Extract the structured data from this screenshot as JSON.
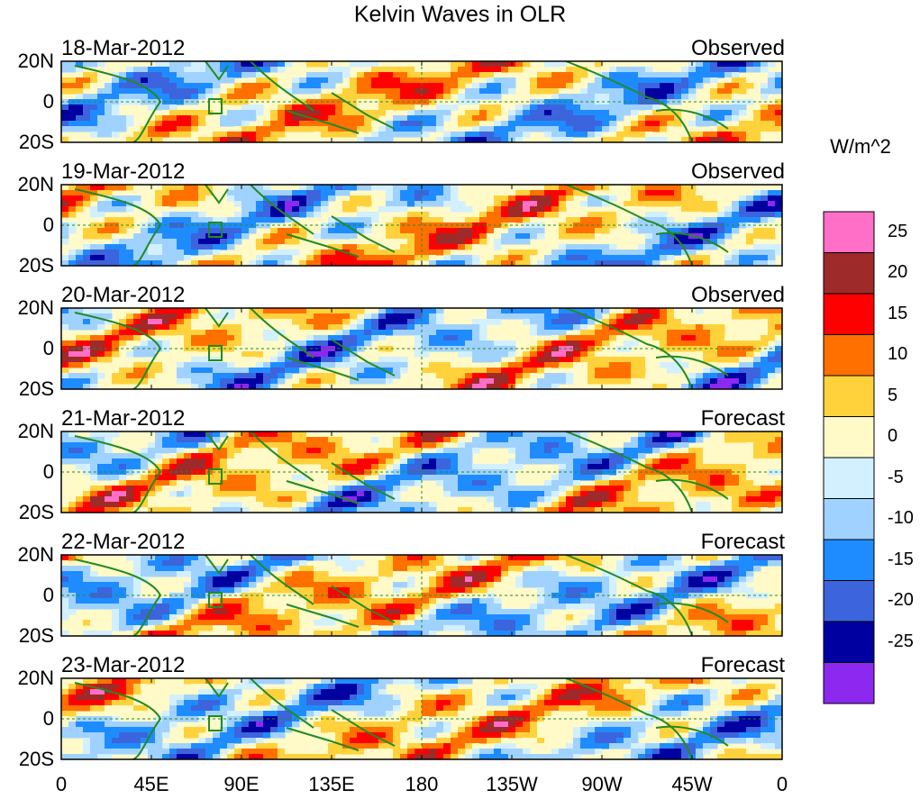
{
  "figure": {
    "title": "Kelvin Waves in OLR",
    "units": "W/m^2",
    "lat_labels": [
      "20N",
      "0",
      "20S"
    ],
    "lon_labels": [
      "0",
      "45E",
      "90E",
      "135E",
      "180",
      "135W",
      "90W",
      "45W",
      "0"
    ],
    "panels": [
      {
        "date": "18-Mar-2012",
        "status": "Observed"
      },
      {
        "date": "19-Mar-2012",
        "status": "Observed"
      },
      {
        "date": "20-Mar-2012",
        "status": "Observed"
      },
      {
        "date": "21-Mar-2012",
        "status": "Forecast"
      },
      {
        "date": "22-Mar-2012",
        "status": "Forecast"
      },
      {
        "date": "23-Mar-2012",
        "status": "Forecast"
      }
    ],
    "colorbar": {
      "labels": [
        "25",
        "20",
        "15",
        "10",
        "5",
        "0",
        "-5",
        "-10",
        "-15",
        "-20",
        "-25"
      ],
      "colors": [
        "#ff6ec7",
        "#9e2a2a",
        "#ff0000",
        "#ff7000",
        "#ffd23c",
        "#fffac8",
        "#d2f0ff",
        "#a0d2ff",
        "#1e8cff",
        "#3c64dc",
        "#0000a0",
        "#8c28f0"
      ]
    },
    "colors": {
      "coastline": "#228b22",
      "frame": "#000000",
      "equator_dash": "#228b22"
    }
  }
}
